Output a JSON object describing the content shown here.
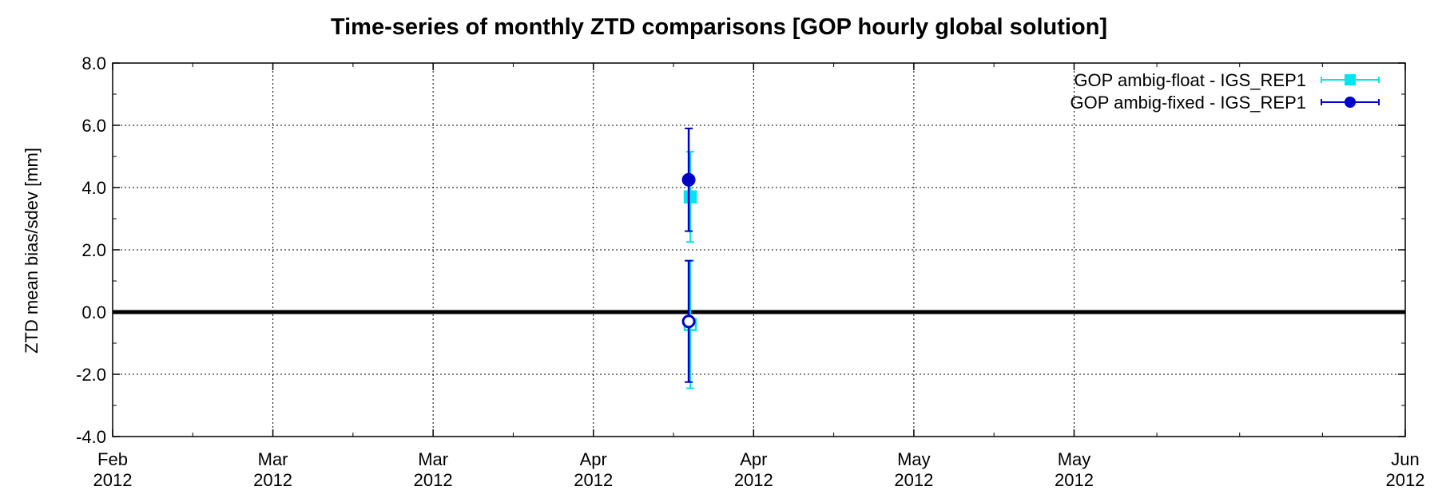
{
  "chart_data": {
    "type": "scatter",
    "title": "Time-series of monthly ZTD comparisons [GOP hourly global solution]",
    "xlabel": "",
    "ylabel": "ZTD mean bias/sdev [mm]",
    "ylim": [
      -4.0,
      8.0
    ],
    "yticks": [
      -4.0,
      -2.0,
      0.0,
      2.0,
      4.0,
      6.0,
      8.0
    ],
    "ytick_labels": [
      "-4.0",
      "-2.0",
      "0.0",
      "2.0",
      "4.0",
      "6.0",
      "8.0"
    ],
    "xlim": [
      "2012-02-01",
      "2012-06-01"
    ],
    "xticks": [
      {
        "month": "Feb",
        "year": "2012",
        "date": "2012-02-01"
      },
      {
        "month": "Mar",
        "year": "2012",
        "date": "2012-02-16"
      },
      {
        "month": "Mar",
        "year": "2012",
        "date": "2012-03-02"
      },
      {
        "month": "Apr",
        "year": "2012",
        "date": "2012-03-17"
      },
      {
        "month": "Apr",
        "year": "2012",
        "date": "2012-04-01"
      },
      {
        "month": "May",
        "year": "2012",
        "date": "2012-04-16"
      },
      {
        "month": "May",
        "year": "2012",
        "date": "2012-05-01"
      },
      {
        "month": "Jun",
        "year": "2012",
        "date": "2012-06-01"
      }
    ],
    "grid": true,
    "legend_position": "top-right",
    "zero_line": true,
    "series": [
      {
        "name": "GOP ambig-float - IGS_REP1",
        "color": "#00e5ee",
        "marker": "square",
        "points": [
          {
            "x": "2012-03-26",
            "y": 3.7,
            "err": 1.45,
            "kind": "bias"
          },
          {
            "x": "2012-03-26",
            "y": -0.4,
            "err": 2.05,
            "kind": "sdev"
          }
        ]
      },
      {
        "name": "GOP ambig-fixed - IGS_REP1",
        "color": "#0000cc",
        "marker": "circle",
        "points": [
          {
            "x": "2012-03-26",
            "y": 4.25,
            "err": 1.65,
            "kind": "bias"
          },
          {
            "x": "2012-03-26",
            "y": -0.3,
            "err": 1.95,
            "kind": "sdev"
          }
        ]
      }
    ]
  }
}
